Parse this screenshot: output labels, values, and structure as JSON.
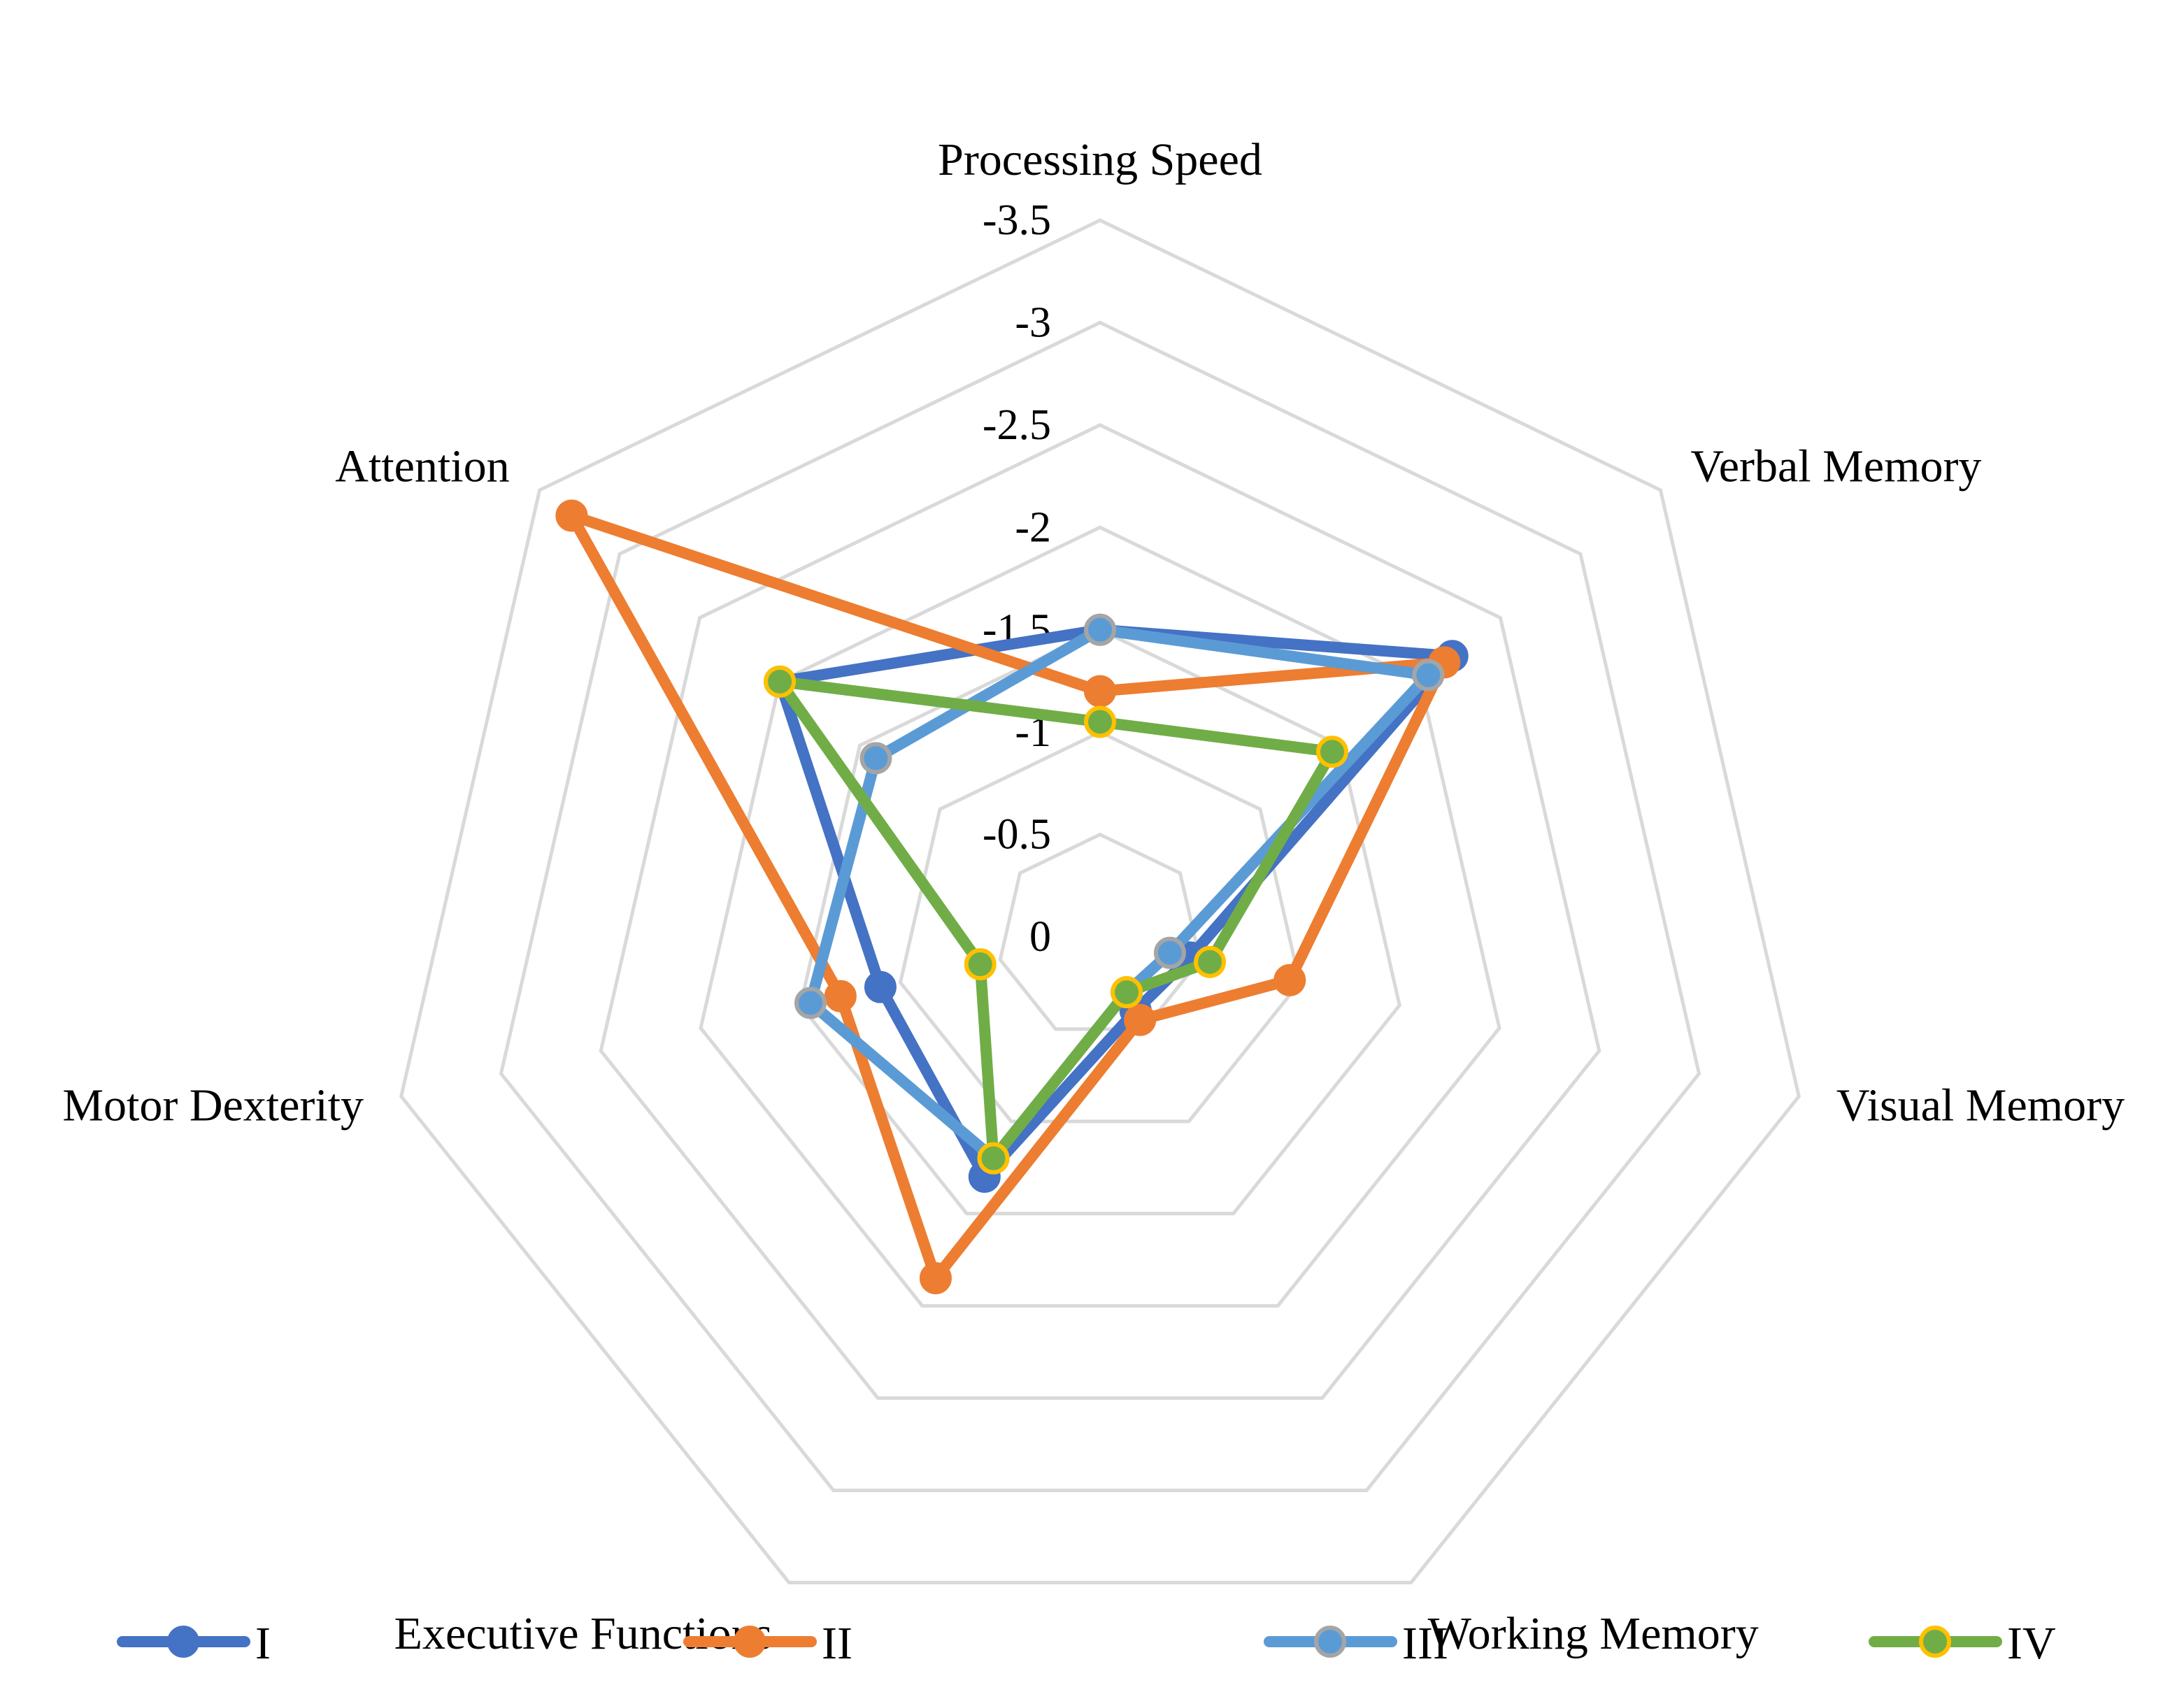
{
  "chart_data": {
    "type": "radar",
    "title": "",
    "axes": [
      "Processing Speed",
      "Verbal Memory",
      "Visual Memory",
      "Working Memory",
      "Executive Functions",
      "Motor Dexterity",
      "Attention"
    ],
    "tick_labels": [
      "0",
      "-0.5",
      "-1",
      "-1.5",
      "-2",
      "-2.5",
      "-3",
      "-3.5"
    ],
    "tick_values": [
      0,
      -0.5,
      -1,
      -1.5,
      -2,
      -2.5,
      -3,
      -3.5
    ],
    "range": [
      0,
      -3.5
    ],
    "series": [
      {
        "name": "I",
        "values": [
          -1.5,
          -2.2,
          -0.45,
          -0.4,
          -1.3,
          -1.1,
          -2.0
        ],
        "color": "#4472c4",
        "marker_fill": "#4472c4",
        "marker_stroke": "#4472c4"
      },
      {
        "name": "II",
        "values": [
          -1.2,
          -2.15,
          -0.95,
          -0.45,
          -1.85,
          -1.3,
          -3.3
        ],
        "color": "#ed7d31",
        "marker_fill": "#ed7d31",
        "marker_stroke": "#ed7d31"
      },
      {
        "name": "III",
        "values": [
          -1.5,
          -2.05,
          -0.35,
          -0.3,
          -1.2,
          -1.45,
          -1.4
        ],
        "color": "#5b9bd5",
        "marker_fill": "#5b9bd5",
        "marker_stroke": "#a5a5a5"
      },
      {
        "name": "IV",
        "values": [
          -1.05,
          -1.45,
          -0.55,
          -0.3,
          -1.2,
          -0.6,
          -2.0
        ],
        "color": "#70ad47",
        "marker_fill": "#70ad47",
        "marker_stroke": "#ffc000"
      }
    ],
    "legend": {
      "position": "bottom",
      "entries": [
        "I",
        "II",
        "III",
        "IV"
      ]
    },
    "grid": true
  }
}
